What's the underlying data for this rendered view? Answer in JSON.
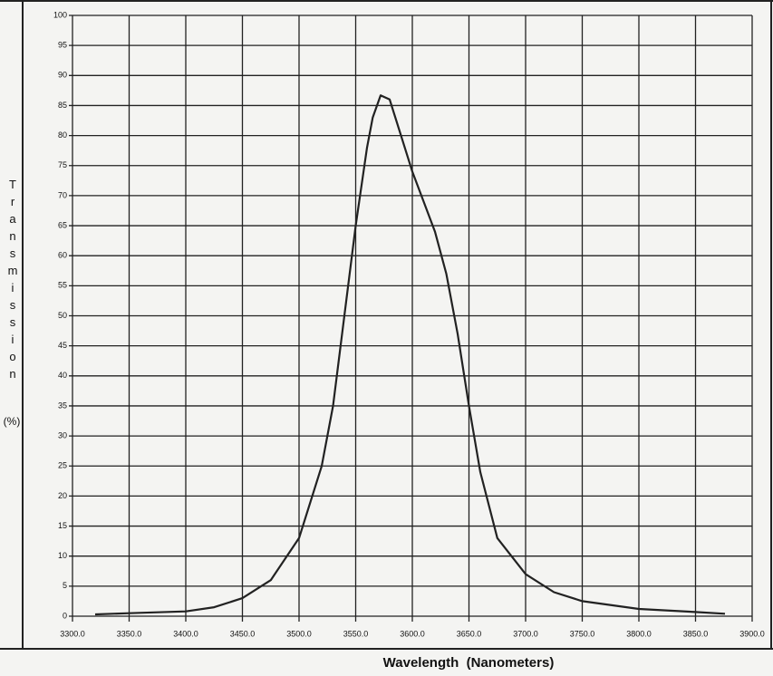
{
  "chart_data": {
    "type": "line",
    "y_label": "Transmission",
    "y_unit": "(%)",
    "x_label": "Wavelength  (Nanometers)",
    "x": [
      3320,
      3350,
      3400,
      3425,
      3450,
      3475,
      3500,
      3520,
      3530,
      3540,
      3550,
      3560,
      3565,
      3572,
      3580,
      3590,
      3600,
      3610,
      3620,
      3630,
      3640,
      3650,
      3660,
      3675,
      3700,
      3725,
      3750,
      3800,
      3850,
      3876
    ],
    "values": [
      0.3,
      0.5,
      0.8,
      1.5,
      3,
      6,
      13,
      25,
      35,
      50,
      65,
      78,
      83,
      86.7,
      86,
      80,
      74,
      69,
      64,
      57,
      47,
      35,
      24,
      13,
      7,
      4,
      2.5,
      1.2,
      0.7,
      0.4
    ],
    "color": "#222222",
    "xlim": [
      3300,
      3900
    ],
    "ylim": [
      0,
      100
    ],
    "xticks": [
      {
        "value": 3300,
        "label": "3300.0"
      },
      {
        "value": 3350,
        "label": "3350.0"
      },
      {
        "value": 3400,
        "label": "3400.0"
      },
      {
        "value": 3450,
        "label": "3450.0"
      },
      {
        "value": 3500,
        "label": "3500.0"
      },
      {
        "value": 3550,
        "label": "3550.0"
      },
      {
        "value": 3600,
        "label": "3600.0"
      },
      {
        "value": 3650,
        "label": "3650.0"
      },
      {
        "value": 3700,
        "label": "3700.0"
      },
      {
        "value": 3750,
        "label": "3750.0"
      },
      {
        "value": 3800,
        "label": "3800.0"
      },
      {
        "value": 3850,
        "label": "3850.0"
      },
      {
        "value": 3900,
        "label": "3900.0"
      }
    ],
    "yticks": [
      0,
      5,
      10,
      15,
      20,
      25,
      30,
      35,
      40,
      45,
      50,
      55,
      60,
      65,
      70,
      75,
      80,
      85,
      90,
      95,
      100
    ],
    "grid": true
  }
}
